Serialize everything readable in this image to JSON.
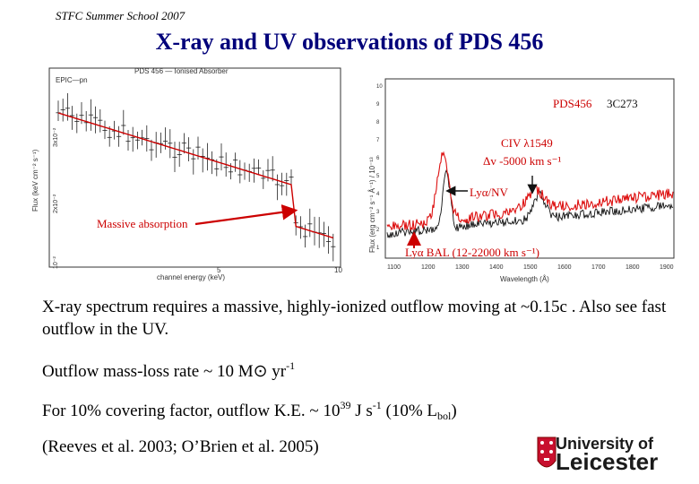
{
  "header": {
    "school": "STFC Summer School 2007"
  },
  "title": "X-ray and UV observations of PDS 456",
  "xray_plot": {
    "caption": "PDS 456 — Ionised Absorber",
    "instrument": "EPIC—pn",
    "ylabel": "Flux (keV cm⁻² s⁻¹)",
    "xlabel": "channel energy (keV)",
    "xticks": [
      "5",
      "10"
    ],
    "yticks": [
      "3x10⁻²",
      "2x10⁻²",
      "10⁻²"
    ]
  },
  "uv_plot": {
    "ylabel": "Flux (erg cm⁻² s⁻¹ Å⁻¹) / 10⁻¹³",
    "xlabel": "Wavelength (Å)",
    "xticks": [
      "1100",
      "1200",
      "1300",
      "1400",
      "1500",
      "1600",
      "1700",
      "1800",
      "1900"
    ],
    "yticks": [
      "10",
      "9",
      "8",
      "7",
      "6",
      "5",
      "4",
      "3",
      "2",
      "1"
    ]
  },
  "annotations": {
    "massive": "Massive absorption",
    "lya_nv": "Lyα/NV",
    "lya_bal": "Lyα BAL (12-22000 km s⁻¹)",
    "civ": "CIV λ1549",
    "dv": "Δv -5000 km s⁻¹",
    "pds": "PDS456",
    "c273": "3C273"
  },
  "body": {
    "p1": "X-ray spectrum requires a massive, highly-ionized outflow moving at ~0.15c . Also see fast outflow in the UV.",
    "p2_pre": "Outflow mass-loss rate ~ 10 M",
    "p2_sun": "⊙",
    "p2_post": " yr",
    "p2_exp": "-1",
    "p3_pre": "For 10% covering factor, outflow K.E. ~ 10",
    "p3_exp": "39",
    "p3_mid": " J s",
    "p3_exp2": "-1",
    "p3_mid2": " (10% L",
    "p3_sub": "bol",
    "p3_post": ")",
    "p4": "(Reeves et al. 2003; O’Brien et al. 2005)"
  },
  "logo": {
    "line1": "University of",
    "line2": "Leicester"
  },
  "colors": {
    "title": "#00007a",
    "model": "#cc0000",
    "annotation": "#cc0000"
  }
}
